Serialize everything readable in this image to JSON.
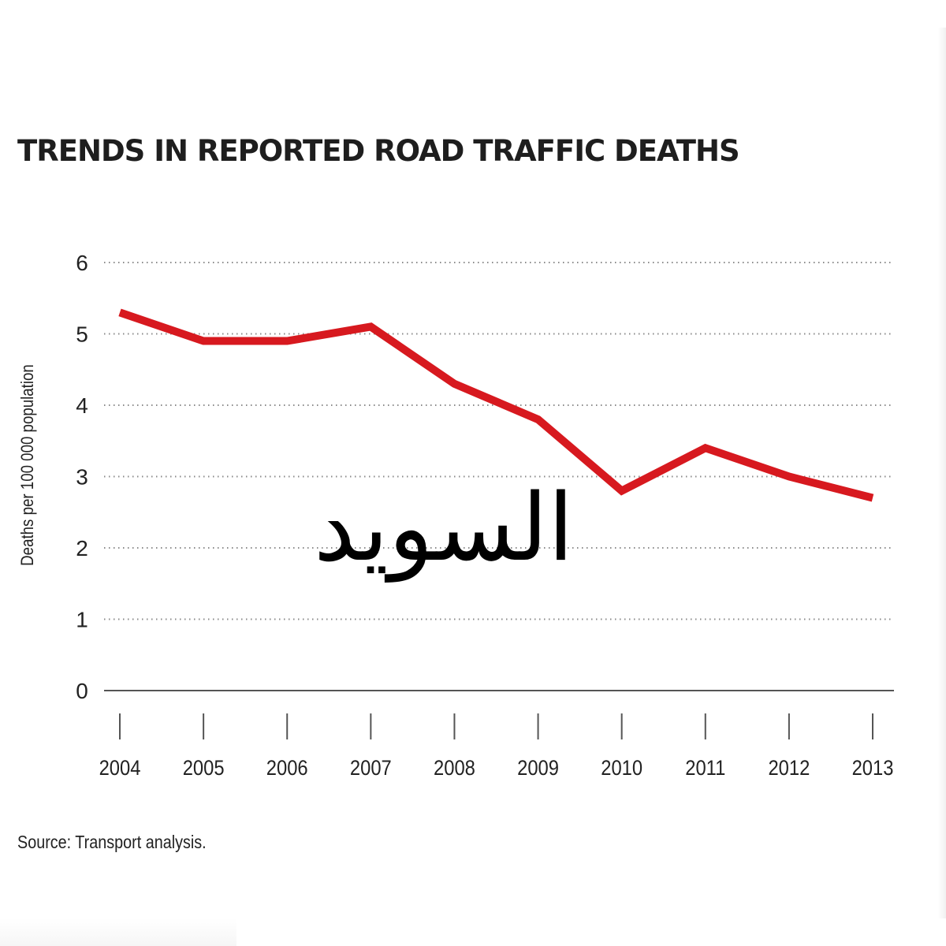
{
  "chart_data": {
    "type": "line",
    "title": "TRENDS IN REPORTED ROAD TRAFFIC DEATHS",
    "ylabel": "Deaths per 100 000 population",
    "xlabel": "",
    "categories": [
      "2004",
      "2005",
      "2006",
      "2007",
      "2008",
      "2009",
      "2010",
      "2011",
      "2012",
      "2013"
    ],
    "series": [
      {
        "values": [
          5.3,
          4.9,
          4.9,
          5.1,
          4.3,
          3.8,
          2.8,
          3.4,
          3.0,
          2.7
        ],
        "color": "#d7191f"
      }
    ],
    "ylim": [
      0,
      6
    ],
    "yticks": [
      "0",
      "1",
      "2",
      "3",
      "4",
      "5",
      "6"
    ],
    "grid": "dotted horizontal",
    "source": "Source: Transport analysis.",
    "overlay_text": "السويد"
  }
}
